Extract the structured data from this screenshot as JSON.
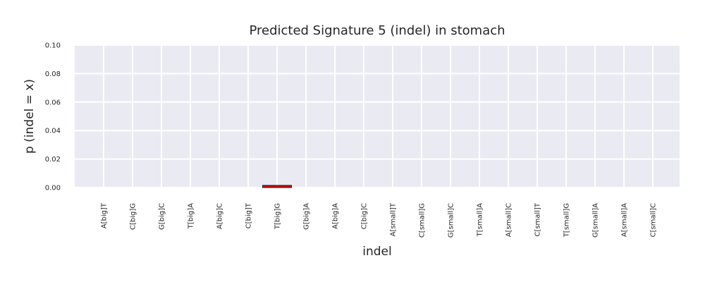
{
  "chart_data": {
    "type": "bar",
    "title": "Predicted Signature 5 (indel) in stomach",
    "xlabel": "indel",
    "ylabel": "p (indel = x)",
    "categories": [
      "A[big]T",
      "C[big]G",
      "G[big]C",
      "T[big]A",
      "A[big]C",
      "C[big]T",
      "T[big]G",
      "G[big]A",
      "A[big]A",
      "C[big]C",
      "A[small]T",
      "C[small]G",
      "G[small]C",
      "T[small]A",
      "A[small]C",
      "C[small]T",
      "T[small]G",
      "G[small]A",
      "A[small]A",
      "C[small]C"
    ],
    "values": [
      0,
      0,
      0,
      0,
      0,
      0,
      0.0015,
      0,
      0,
      0,
      0,
      0,
      0,
      0,
      0,
      0,
      0,
      0,
      0,
      0
    ],
    "ylim": [
      0,
      0.1
    ],
    "yticks": [
      "0.00",
      "0.02",
      "0.04",
      "0.06",
      "0.08",
      "0.10"
    ],
    "grid": true,
    "colors": {
      "bar": "#e00000",
      "bar_edge": "#1a1a1a",
      "background": "#eaeaf2",
      "grid": "#ffffff"
    }
  }
}
